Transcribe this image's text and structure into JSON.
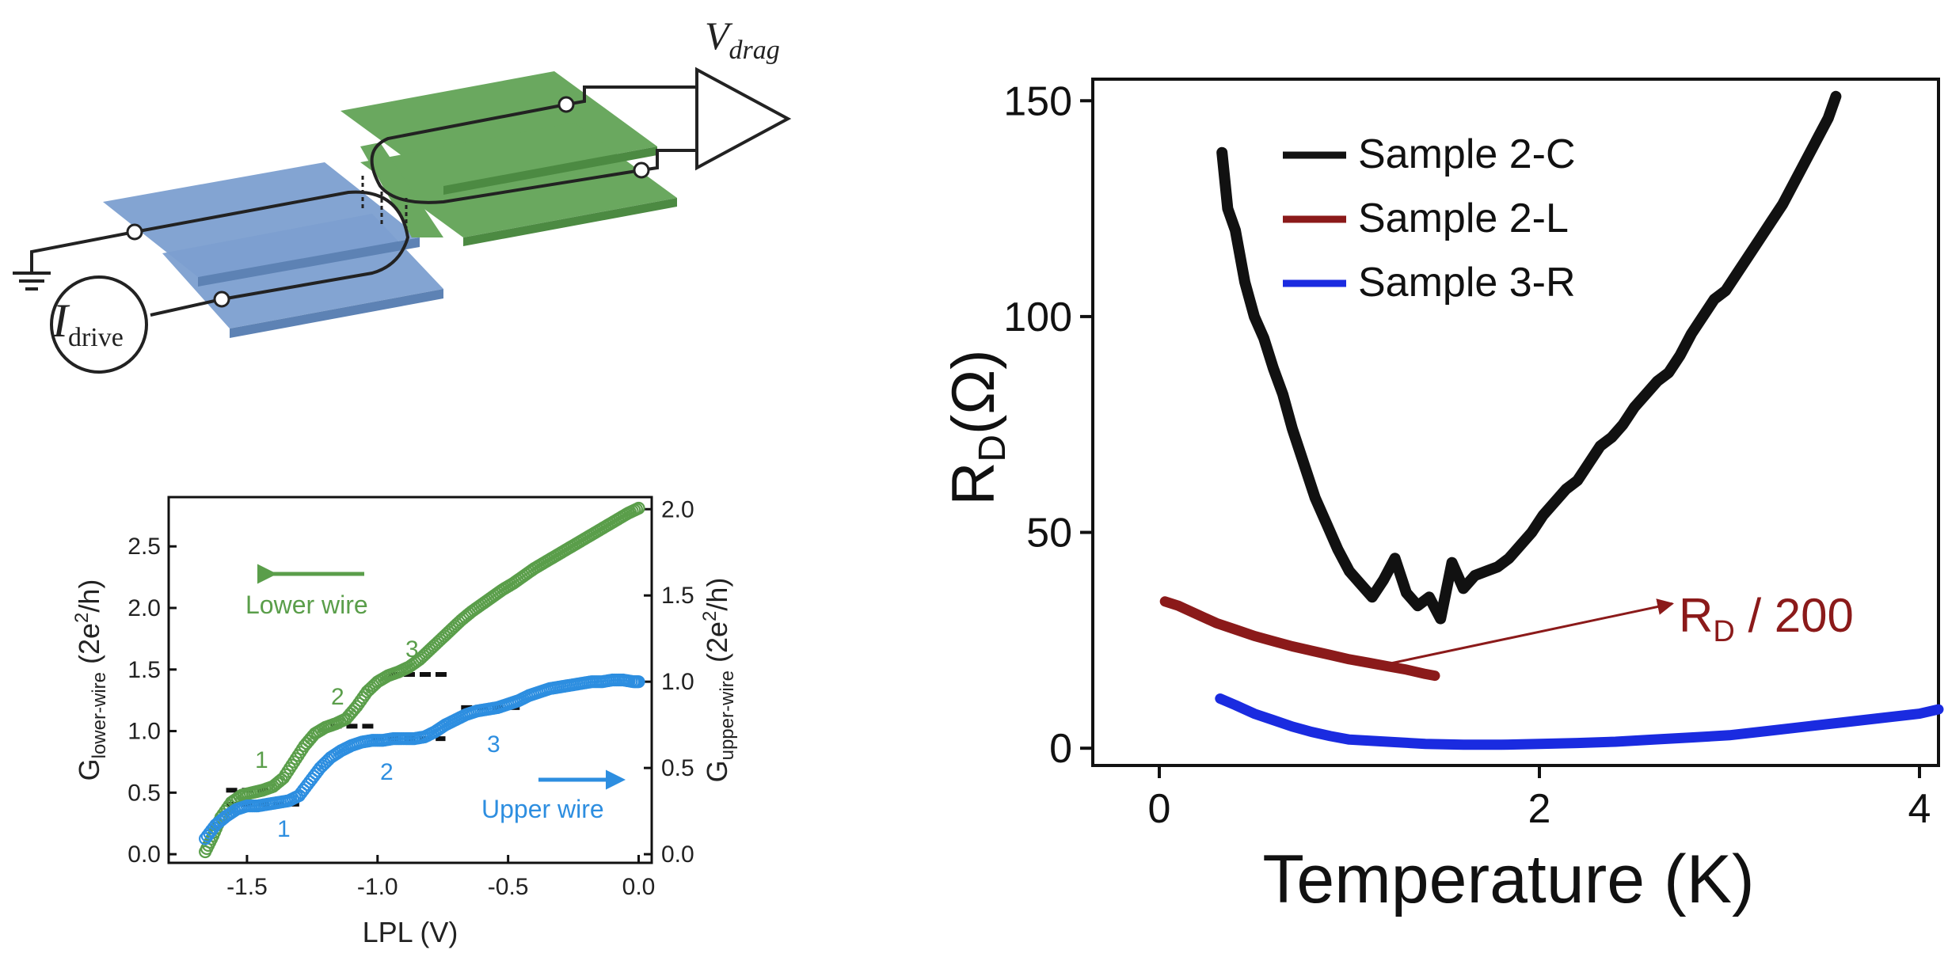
{
  "schematic": {
    "vdrag_main": "V",
    "vdrag_sub": "drag",
    "idrive_main": "I",
    "idrive_sub": "drive",
    "colors": {
      "lower_wire": "#7c9fd0",
      "upper_wire": "#6aa85f",
      "lines": "#222222"
    }
  },
  "chart_data": [
    {
      "id": "conductance",
      "type": "scatter",
      "title": "",
      "xlabel": "LPL (V)",
      "ylabel_left": {
        "main": "G",
        "sub": "lower-wire",
        "unit_pre": "(2e",
        "sup": "2",
        "unit_post": "/h)"
      },
      "ylabel_right": {
        "main": "G",
        "sub": "upper-wire",
        "unit_pre": "(2e",
        "sup": "2",
        "unit_post": "/h)"
      },
      "xlim": [
        -1.8,
        0.05
      ],
      "ylim_left": [
        -0.07,
        2.9
      ],
      "ylim_right": [
        -0.05,
        2.07
      ],
      "x_ticks": [
        -1.5,
        -1.0,
        -0.5,
        0.0
      ],
      "x_tick_labels": [
        "-1.5",
        "-1.0",
        "-0.5",
        "0.0"
      ],
      "y_left_ticks": [
        0.0,
        0.5,
        1.0,
        1.5,
        2.0,
        2.5
      ],
      "y_left_tick_labels": [
        "0.0",
        "0.5",
        "1.0",
        "1.5",
        "2.0",
        "2.5"
      ],
      "y_right_ticks": [
        0.0,
        0.5,
        1.0,
        1.5,
        2.0
      ],
      "y_right_tick_labels": [
        "0.0",
        "0.5",
        "1.0",
        "1.5",
        "2.0"
      ],
      "series": [
        {
          "name": "Lower wire",
          "axis": "left",
          "color": "#5a9e4a",
          "x": [
            -1.66,
            -1.63,
            -1.6,
            -1.56,
            -1.52,
            -1.48,
            -1.44,
            -1.4,
            -1.36,
            -1.32,
            -1.28,
            -1.24,
            -1.2,
            -1.16,
            -1.12,
            -1.08,
            -1.04,
            -1.0,
            -0.96,
            -0.92,
            -0.88,
            -0.84,
            -0.8,
            -0.76,
            -0.72,
            -0.68,
            -0.64,
            -0.6,
            -0.56,
            -0.52,
            -0.48,
            -0.44,
            -0.4,
            -0.36,
            -0.32,
            -0.28,
            -0.24,
            -0.2,
            -0.16,
            -0.12,
            -0.08,
            -0.04,
            0.0
          ],
          "y": [
            0.02,
            0.15,
            0.3,
            0.42,
            0.48,
            0.5,
            0.52,
            0.55,
            0.62,
            0.75,
            0.88,
            0.98,
            1.03,
            1.06,
            1.1,
            1.2,
            1.32,
            1.4,
            1.45,
            1.48,
            1.52,
            1.58,
            1.66,
            1.74,
            1.82,
            1.9,
            1.97,
            2.03,
            2.09,
            2.15,
            2.2,
            2.26,
            2.32,
            2.37,
            2.42,
            2.47,
            2.52,
            2.57,
            2.62,
            2.67,
            2.72,
            2.77,
            2.81
          ]
        },
        {
          "name": "Upper wire",
          "axis": "right",
          "color": "#2d8ee0",
          "x": [
            -1.66,
            -1.62,
            -1.58,
            -1.54,
            -1.5,
            -1.46,
            -1.42,
            -1.38,
            -1.34,
            -1.3,
            -1.26,
            -1.22,
            -1.18,
            -1.14,
            -1.1,
            -1.06,
            -1.02,
            -0.98,
            -0.94,
            -0.9,
            -0.86,
            -0.82,
            -0.78,
            -0.74,
            -0.7,
            -0.66,
            -0.62,
            -0.58,
            -0.54,
            -0.5,
            -0.46,
            -0.42,
            -0.38,
            -0.34,
            -0.3,
            -0.26,
            -0.22,
            -0.18,
            -0.14,
            -0.1,
            -0.06,
            -0.02,
            0.0
          ],
          "y": [
            0.09,
            0.17,
            0.22,
            0.26,
            0.28,
            0.28,
            0.29,
            0.3,
            0.31,
            0.34,
            0.42,
            0.5,
            0.56,
            0.6,
            0.63,
            0.65,
            0.66,
            0.66,
            0.67,
            0.67,
            0.67,
            0.68,
            0.71,
            0.75,
            0.78,
            0.81,
            0.83,
            0.84,
            0.85,
            0.87,
            0.89,
            0.92,
            0.94,
            0.96,
            0.97,
            0.98,
            0.99,
            1.0,
            1.0,
            1.01,
            1.01,
            1.0,
            1.0
          ]
        }
      ],
      "plateaus_left": [
        {
          "x": [
            -1.58,
            -1.4
          ],
          "y": 0.52
        },
        {
          "x": [
            -1.18,
            -1.0
          ],
          "y": 1.04
        },
        {
          "x": [
            -0.96,
            -0.72
          ],
          "y": 1.46
        }
      ],
      "plateaus_right": [
        {
          "x": [
            -1.58,
            -1.3
          ],
          "y": 0.29
        },
        {
          "x": [
            -1.02,
            -0.74
          ],
          "y": 0.67
        },
        {
          "x": [
            -0.68,
            -0.44
          ],
          "y": 0.85
        }
      ],
      "annotations": {
        "lower_label": "Lower wire",
        "upper_label": "Upper wire",
        "lower_numbers": [
          "1",
          "2",
          "3"
        ],
        "upper_numbers": [
          "1",
          "2",
          "3"
        ]
      }
    },
    {
      "id": "drag",
      "type": "line",
      "title": "",
      "xlabel": "Temperature (K)",
      "ylabel": {
        "main": "R",
        "sub": "D",
        "unit": "(Ω)"
      },
      "xlim": [
        -0.35,
        4.1
      ],
      "ylim": [
        -4,
        155
      ],
      "x_ticks": [
        0,
        2,
        4
      ],
      "x_tick_labels": [
        "0",
        "2",
        "4"
      ],
      "y_ticks": [
        0,
        50,
        100,
        150
      ],
      "y_tick_labels": [
        "0",
        "50",
        "100",
        "150"
      ],
      "legend_position": "top-left",
      "series": [
        {
          "name": "Sample 2-C",
          "color": "#111111",
          "x": [
            0.33,
            0.36,
            0.4,
            0.45,
            0.5,
            0.55,
            0.6,
            0.65,
            0.7,
            0.76,
            0.82,
            0.88,
            0.94,
            1.0,
            1.06,
            1.12,
            1.18,
            1.24,
            1.3,
            1.36,
            1.42,
            1.48,
            1.54,
            1.6,
            1.66,
            1.72,
            1.78,
            1.84,
            1.9,
            1.96,
            2.02,
            2.08,
            2.14,
            2.2,
            2.26,
            2.32,
            2.38,
            2.44,
            2.5,
            2.56,
            2.62,
            2.68,
            2.74,
            2.8,
            2.86,
            2.92,
            2.98,
            3.04,
            3.1,
            3.16,
            3.22,
            3.28,
            3.34,
            3.4,
            3.46,
            3.52,
            3.56
          ],
          "y": [
            138,
            125,
            120,
            108,
            100,
            95,
            88,
            82,
            74,
            66,
            58,
            52,
            46,
            41,
            38,
            35,
            39,
            44,
            36,
            33,
            35,
            30,
            43,
            37,
            40,
            41,
            42,
            44,
            47,
            50,
            54,
            57,
            60,
            62,
            66,
            70,
            72,
            75,
            79,
            82,
            85,
            87,
            91,
            96,
            100,
            104,
            106,
            110,
            114,
            118,
            122,
            126,
            131,
            136,
            141,
            146,
            151
          ]
        },
        {
          "name": "Sample 2-L",
          "color": "#8b1a1a",
          "x": [
            0.03,
            0.1,
            0.2,
            0.3,
            0.4,
            0.5,
            0.6,
            0.7,
            0.8,
            0.9,
            1.0,
            1.1,
            1.2,
            1.3,
            1.4,
            1.45
          ],
          "y": [
            34,
            33,
            31,
            29,
            27.5,
            26,
            24.8,
            23.6,
            22.6,
            21.6,
            20.6,
            19.8,
            19,
            18.2,
            17.2,
            16.8
          ]
        },
        {
          "name": "Sample 3-R",
          "color": "#1a2be0",
          "x": [
            0.32,
            0.4,
            0.5,
            0.6,
            0.7,
            0.8,
            0.9,
            1.0,
            1.2,
            1.4,
            1.6,
            1.8,
            2.0,
            2.2,
            2.4,
            2.6,
            2.8,
            3.0,
            3.2,
            3.4,
            3.6,
            3.8,
            4.0,
            4.1
          ],
          "y": [
            11.5,
            10,
            8,
            6.5,
            5,
            3.8,
            2.8,
            2,
            1.5,
            1,
            0.8,
            0.8,
            1,
            1.2,
            1.5,
            2,
            2.5,
            3,
            4,
            5,
            6,
            7,
            8,
            9
          ]
        }
      ],
      "annotation": {
        "main": "R",
        "sub": "D",
        "suffix": " / 200",
        "color": "#8b1a1a",
        "arrow_from": [
          1.2,
          19.5
        ],
        "arrow_to": [
          2.7,
          33.5
        ]
      }
    }
  ]
}
